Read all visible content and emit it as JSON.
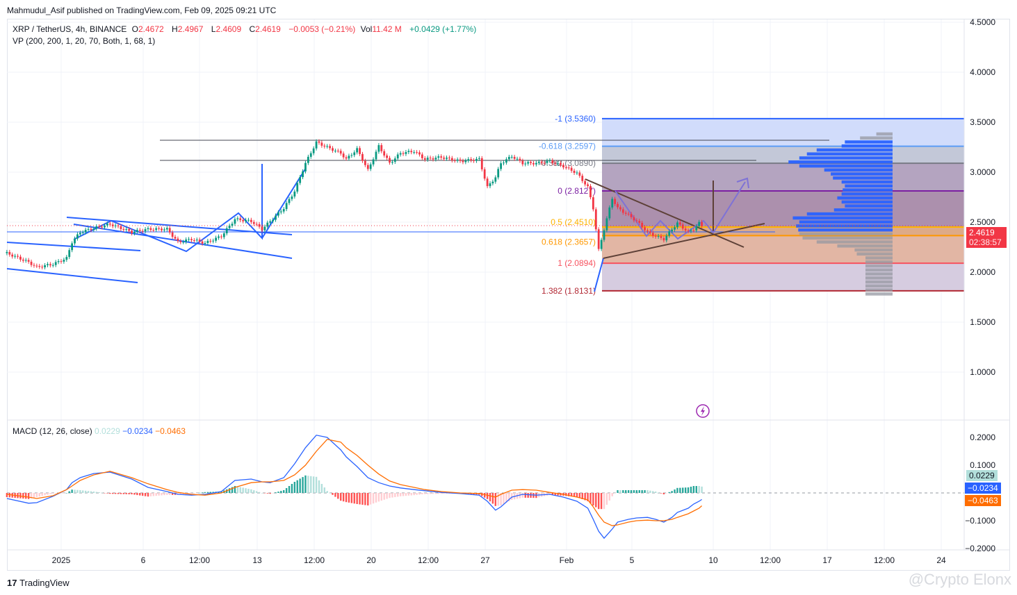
{
  "header": {
    "published": "Mahmudul_Asif published on TradingView.com, Feb 09, 2025 09:21 UTC"
  },
  "legend": {
    "symbol": "XRP / TetherUS, 4h, BINANCE",
    "o_label": "O",
    "o": "2.4672",
    "h_label": "H",
    "h": "2.4967",
    "l_label": "L",
    "l": "2.4609",
    "c_label": "C",
    "c": "2.4619",
    "change": "−0.0053 (−0.21%)",
    "vol_label": "Vol",
    "vol": "11.42 M",
    "vol_change": "+0.0429 (+1.77%)",
    "vp": "VP (200, 200, 1, 20, 70, Both, 1, 68, 1)"
  },
  "macd_legend": {
    "title": "MACD (12, 26, close)",
    "hist": "0.0229",
    "macd": "−0.0234",
    "signal": "−0.0463"
  },
  "price_badge": {
    "price": "2.4619",
    "countdown": "02:38:57"
  },
  "macd_badges": {
    "hist": "0.0229",
    "macd": "−0.0234",
    "signal": "−0.0463"
  },
  "footer": {
    "brand": "TradingView",
    "watermark": "@Crypto Elonx"
  },
  "colors": {
    "up": "#089981",
    "down": "#f23645",
    "macd": "#2962ff",
    "signal": "#ff6d00",
    "vp_up": "#2962ff",
    "vp_down": "#9598a1"
  },
  "chart_data": [
    {
      "type": "candlestick",
      "title": "XRP / TetherUS, 4h, BINANCE",
      "ylim": [
        0.8,
        4.6
      ],
      "price_ticks": [
        "4.5000",
        "4.0000",
        "3.5000",
        "3.0000",
        "2.5000",
        "2.0000",
        "1.5000",
        "1.0000"
      ],
      "x_ticks": [
        "2025",
        "6",
        "12:00",
        "13",
        "12:00",
        "20",
        "12:00",
        "27",
        "Feb",
        "5",
        "10",
        "12:00",
        "17",
        "12:00",
        "24"
      ],
      "dates": [
        "2024-12-28 16:00",
        "2024-12-30 00:00",
        "2024-12-30 12:00",
        "2024-12-31 12:00",
        "2025-01-01 08:00",
        "2025-01-01 16:00",
        "2025-01-02 04:00",
        "2025-01-03 00:00",
        "2025-01-04 00:00",
        "2025-01-05 08:00",
        "2025-01-06 08:00",
        "2025-01-07 12:00",
        "2025-01-08 04:00",
        "2025-01-09 00:00",
        "2025-01-09 20:00",
        "2025-01-10 20:00",
        "2025-01-11 16:00",
        "2025-01-12 16:00",
        "2025-01-13 08:00",
        "2025-01-13 20:00",
        "2025-01-14 16:00",
        "2025-01-15 08:00",
        "2025-01-16 00:00",
        "2025-01-16 16:00",
        "2025-01-17 08:00",
        "2025-01-18 04:00",
        "2025-01-18 12:00",
        "2025-01-19 04:00",
        "2025-01-19 20:00",
        "2025-01-20 12:00",
        "2025-01-21 04:00",
        "2025-01-21 20:00",
        "2025-01-22 16:00",
        "2025-01-23 08:00",
        "2025-01-24 08:00",
        "2025-01-25 12:00",
        "2025-01-26 16:00",
        "2025-01-27 04:00",
        "2025-01-27 16:00",
        "2025-01-28 00:00",
        "2025-01-28 16:00",
        "2025-01-29 08:00",
        "2025-01-30 04:00",
        "2025-01-31 00:00",
        "2025-01-31 20:00",
        "2025-02-01 16:00",
        "2025-02-02 08:00",
        "2025-02-02 16:00",
        "2025-02-03 00:00",
        "2025-02-03 08:00",
        "2025-02-03 20:00",
        "2025-02-04 04:00",
        "2025-02-04 20:00",
        "2025-02-05 08:00",
        "2025-02-06 00:00",
        "2025-02-06 12:00",
        "2025-02-07 00:00",
        "2025-02-07 12:00",
        "2025-02-07 20:00",
        "2025-02-08 12:00",
        "2025-02-08 20:00",
        "2025-02-09 04:00",
        "2025-02-09 08:00"
      ],
      "close": [
        2.19,
        2.1,
        2.05,
        2.08,
        2.14,
        2.3,
        2.4,
        2.44,
        2.48,
        2.4,
        2.43,
        2.43,
        2.3,
        2.33,
        2.29,
        2.36,
        2.53,
        2.51,
        2.43,
        2.51,
        2.64,
        2.81,
        3.09,
        3.3,
        3.25,
        3.19,
        3.13,
        3.23,
        3.02,
        3.26,
        3.09,
        3.19,
        3.21,
        3.13,
        3.15,
        3.11,
        3.13,
        2.85,
        2.95,
        3.09,
        3.16,
        3.09,
        3.09,
        3.11,
        3.06,
        2.99,
        2.85,
        2.64,
        2.22,
        2.43,
        2.74,
        2.64,
        2.57,
        2.51,
        2.4,
        2.36,
        2.33,
        2.43,
        2.49,
        2.4,
        2.43,
        2.49,
        2.4619
      ],
      "fib_levels": [
        {
          "label": "-1 (3.5360)",
          "price": 3.536,
          "color": "#2962ff"
        },
        {
          "label": "-0.618 (3.2597)",
          "price": 3.2597,
          "color": "#5b9cf6"
        },
        {
          "label": "-0.382 (3.0890)",
          "price": 3.089,
          "color": "#787b86"
        },
        {
          "label": "0 (2.8127)",
          "price": 2.8127,
          "color": "#7b1fa2"
        },
        {
          "label": "0.5 (2.4510)",
          "price": 2.451,
          "color": "#ffb300"
        },
        {
          "label": "0.618 (2.3657)",
          "price": 2.3657,
          "color": "#ff9800"
        },
        {
          "label": "1 (2.0894)",
          "price": 2.0894,
          "color": "#f7525f"
        },
        {
          "label": "1.382 (1.8131)",
          "price": 1.8131,
          "color": "#b22833"
        }
      ],
      "volume_profile": {
        "prices": [
          3.38,
          3.34,
          3.3,
          3.26,
          3.22,
          3.18,
          3.14,
          3.1,
          3.06,
          3.02,
          2.98,
          2.94,
          2.9,
          2.86,
          2.82,
          2.78,
          2.74,
          2.7,
          2.66,
          2.62,
          2.58,
          2.54,
          2.5,
          2.46,
          2.42,
          2.38,
          2.34,
          2.3,
          2.26,
          2.22,
          2.18,
          2.14,
          2.1,
          2.06,
          2.02,
          1.98,
          1.94,
          1.9,
          1.86,
          1.82,
          1.78
        ],
        "relative_volume": [
          0.15,
          0.3,
          0.44,
          0.47,
          0.7,
          0.79,
          0.86,
          0.96,
          0.86,
          0.63,
          0.57,
          0.55,
          0.47,
          0.44,
          0.46,
          0.47,
          0.51,
          0.47,
          0.44,
          0.54,
          0.79,
          0.92,
          0.86,
          0.89,
          0.87,
          0.86,
          0.83,
          0.7,
          0.51,
          0.35,
          0.33,
          0.25,
          0.25,
          0.25,
          0.25,
          0.25,
          0.25,
          0.25,
          0.25,
          0.25,
          0.25
        ]
      }
    },
    {
      "type": "line",
      "title": "MACD (12, 26, close)",
      "ylim": [
        -0.2,
        0.22
      ],
      "y_ticks": [
        "0.2000",
        "0.1000",
        "−0.1000",
        "−0.2000"
      ],
      "macd": [
        -0.02,
        -0.037,
        -0.035,
        -0.012,
        0.012,
        0.037,
        0.055,
        0.07,
        0.075,
        0.05,
        0.02,
        0.005,
        -0.005,
        -0.008,
        -0.005,
        0.005,
        0.045,
        0.05,
        0.04,
        0.037,
        0.055,
        0.105,
        0.163,
        0.208,
        0.2,
        0.155,
        0.13,
        0.095,
        0.055,
        0.037,
        0.025,
        0.018,
        0.012,
        0.008,
        0.002,
        -0.002,
        -0.008,
        -0.03,
        -0.062,
        -0.05,
        -0.015,
        -0.005,
        -0.008,
        -0.005,
        -0.015,
        -0.03,
        -0.055,
        -0.095,
        -0.138,
        -0.163,
        -0.13,
        -0.105,
        -0.095,
        -0.09,
        -0.088,
        -0.095,
        -0.105,
        -0.088,
        -0.07,
        -0.055,
        -0.04,
        -0.03,
        -0.0234
      ],
      "signal": [
        -0.005,
        -0.015,
        -0.02,
        -0.01,
        0.012,
        0.025,
        0.045,
        0.065,
        0.078,
        0.055,
        0.033,
        0.012,
        0.002,
        -0.005,
        -0.008,
        0,
        0.02,
        0.037,
        0.04,
        0.04,
        0.045,
        0.065,
        0.1,
        0.15,
        0.193,
        0.183,
        0.163,
        0.135,
        0.1,
        0.068,
        0.043,
        0.03,
        0.02,
        0.012,
        0.005,
        0,
        -0.002,
        -0.008,
        -0.015,
        -0.005,
        0.01,
        0.012,
        0.01,
        0.002,
        -0.005,
        -0.015,
        -0.025,
        -0.05,
        -0.08,
        -0.105,
        -0.118,
        -0.115,
        -0.105,
        -0.1,
        -0.098,
        -0.1,
        -0.1,
        -0.095,
        -0.088,
        -0.075,
        -0.065,
        -0.055,
        -0.0463
      ]
    }
  ]
}
